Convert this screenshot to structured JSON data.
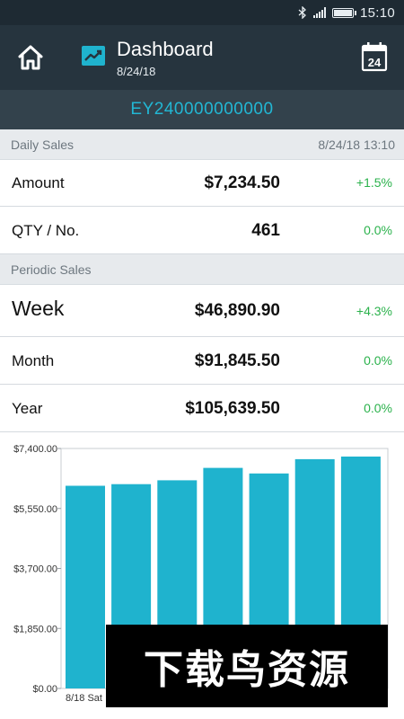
{
  "status_bar": {
    "time": "15:10"
  },
  "header": {
    "title": "Dashboard",
    "date": "8/24/18",
    "calendar_day": "24"
  },
  "device": {
    "id": "EY240000000000"
  },
  "daily_sales": {
    "title": "Daily Sales",
    "timestamp": "8/24/18 13:10",
    "rows": [
      {
        "label": "Amount",
        "value": "$7,234.50",
        "change": "+1.5%"
      },
      {
        "label": "QTY / No.",
        "value": "461",
        "change": "0.0%"
      }
    ]
  },
  "periodic_sales": {
    "title": "Periodic Sales",
    "rows": [
      {
        "label": "Week",
        "value": "$46,890.90",
        "change": "+4.3%"
      },
      {
        "label": "Month",
        "value": "$91,845.50",
        "change": "0.0%"
      },
      {
        "label": "Year",
        "value": "$105,639.50",
        "change": "0.0%"
      }
    ]
  },
  "colors": {
    "accent": "#1fb3ce",
    "positive": "#2bb24c",
    "header_bg": "#26343e",
    "status_bg": "#1e2a33"
  },
  "chart_data": {
    "type": "bar",
    "categories": [
      "8/18 Sat",
      "",
      "",
      "",
      "",
      "",
      ""
    ],
    "values": [
      6250,
      6300,
      6420,
      6800,
      6630,
      7070,
      7150
    ],
    "ylim": [
      0,
      7400
    ],
    "y_ticks": [
      "$0.00",
      "$1,850.00",
      "$3,700.00",
      "$5,550.00",
      "$7,400.00"
    ],
    "y_tick_values": [
      0,
      1850,
      3700,
      5550,
      7400
    ],
    "grid": false
  },
  "watermark": {
    "text": "下载鸟资源"
  }
}
